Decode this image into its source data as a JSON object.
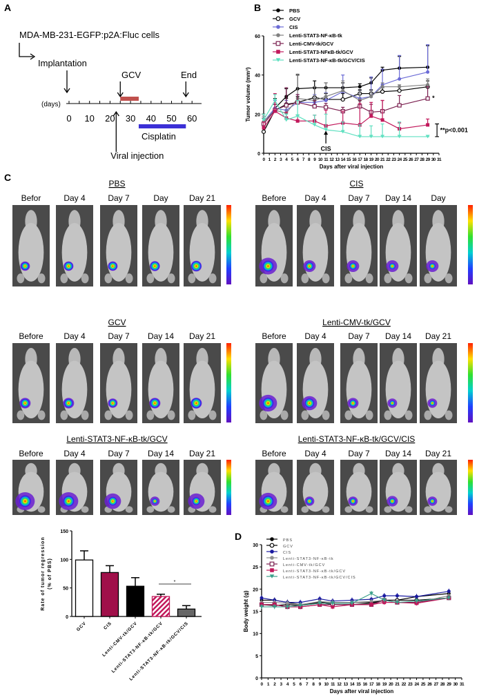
{
  "panel_labels": {
    "a": "A",
    "b": "B",
    "c": "C",
    "d": "D"
  },
  "panel_a": {
    "cells": "MDA-MB-231-EGFP:p2A:Fluc cells",
    "implantation": "Implantation",
    "gcv": "GCV",
    "end": "End",
    "days_label": "(days)",
    "ticks": [
      0,
      10,
      20,
      30,
      40,
      50,
      60
    ],
    "gcv_period_days": [
      25,
      34
    ],
    "cisplatin_period_days": [
      34,
      57
    ],
    "viral_injection_day": 23,
    "cisplatin": "Cisplatin",
    "viral_injection": "Viral injection",
    "colors": {
      "gcv_bar": "#c0504d",
      "cisplatin_bar": "#3b2fd6"
    }
  },
  "panel_c": {
    "groups": [
      {
        "title": "PBS",
        "labels": [
          "Befor",
          "Day 4",
          "Day 7",
          "Day",
          "Day 21"
        ],
        "signal": [
          0.5,
          0.6,
          0.6,
          0.7,
          0.8
        ],
        "spread": [
          0.3,
          0.3,
          0.3,
          0.3,
          0.3
        ]
      },
      {
        "title": "CIS",
        "labels": [
          "Before",
          "Day 4",
          "Day 7",
          "Day 14",
          "Day"
        ],
        "signal": [
          0.9,
          0.5,
          0.4,
          0.3,
          0.3
        ],
        "spread": [
          0.9,
          0.5,
          0.5,
          0.5,
          0.5
        ]
      },
      {
        "title": "GCV",
        "labels": [
          "Before",
          "Day 4",
          "Day 7",
          "Day 14",
          "Day 21"
        ],
        "signal": [
          0.6,
          0.6,
          0.5,
          0.7,
          0.8
        ],
        "spread": [
          0.4,
          0.4,
          0.3,
          0.4,
          0.4
        ]
      },
      {
        "title": "Lenti-CMV-tk/GCV",
        "labels": [
          "Before",
          "Day 4",
          "Day 7",
          "Day 14",
          "Day 21"
        ],
        "signal": [
          0.9,
          0.7,
          0.4,
          0.2,
          0.2
        ],
        "spread": [
          0.9,
          0.7,
          0.4,
          0.3,
          0.3
        ]
      },
      {
        "title": "Lenti-STAT3-NF-κB-tk/GCV",
        "labels": [
          "Before",
          "Day 4",
          "Day 7",
          "Day 14",
          "Day 21"
        ],
        "signal": [
          1.0,
          0.9,
          0.6,
          0.2,
          0.5
        ],
        "spread": [
          1.0,
          1.0,
          0.8,
          0.3,
          0.8
        ]
      },
      {
        "title": "Lenti-STAT3-NF-κB-tk/GCV/CIS",
        "labels": [
          "Before",
          "Day 4",
          "Day 7",
          "Day 14",
          "Day 21"
        ],
        "signal": [
          0.9,
          0.3,
          0.3,
          0.3,
          0.2
        ],
        "spread": [
          0.9,
          0.3,
          0.3,
          0.4,
          0.3
        ]
      }
    ]
  },
  "chart_data": [
    {
      "id": "B",
      "type": "line",
      "xlabel": "Days after viral injection",
      "ylabel": "Tumor volume (mm³)",
      "xlim": [
        0,
        31
      ],
      "ylim": [
        0,
        60
      ],
      "yticks": [
        0,
        20,
        40,
        60
      ],
      "legend_placement": "top-left",
      "x": [
        0,
        2,
        4,
        6,
        9,
        11,
        14,
        17,
        19,
        21,
        24,
        29
      ],
      "series": [
        {
          "name": "PBS",
          "color": "#000000",
          "marker": "filled-circle",
          "values": [
            16,
            23,
            29,
            33,
            33.5,
            33.5,
            33.5,
            34,
            36,
            42.5,
            43.5,
            44
          ],
          "err": [
            4,
            5,
            4,
            7,
            3.5,
            2.5,
            2.5,
            1.5,
            2.5,
            1.5,
            6,
            11
          ]
        },
        {
          "name": "GCV",
          "color": "#000000",
          "marker": "open-circle",
          "values": [
            11,
            22,
            25,
            26,
            28.5,
            27.5,
            27.5,
            30.5,
            30.5,
            31.5,
            32,
            34
          ],
          "err": [
            2,
            3,
            3,
            3,
            5,
            3,
            3,
            2,
            2,
            2,
            2,
            3
          ]
        },
        {
          "name": "CIS",
          "color": "#6b6bd6",
          "marker": "filled-circle",
          "values": [
            16,
            23,
            22,
            26,
            26,
            27,
            31.5,
            28,
            29,
            35,
            38,
            41.5
          ],
          "err": [
            3,
            4,
            5,
            4,
            4,
            4,
            8.5,
            4,
            10,
            8,
            12,
            14
          ]
        },
        {
          "name": "Lenti-STAT3-NF-κB-tk",
          "color": "#808080",
          "marker": "filled-circle",
          "values": [
            16,
            22,
            20.5,
            28,
            27,
            29,
            32,
            27,
            29,
            34,
            34,
            35
          ],
          "err": [
            3,
            3,
            4,
            12.5,
            7,
            7,
            5,
            5,
            3,
            2,
            1,
            3
          ]
        },
        {
          "name": "Lenti-CMV-tk/GCV",
          "color": "#7a1f4f",
          "marker": "open-square",
          "values": [
            15,
            22,
            24.5,
            26,
            24,
            23.5,
            21.5,
            24,
            21,
            21.5,
            24.5,
            28
          ],
          "err": [
            3,
            3,
            9,
            4,
            3,
            2,
            2,
            3,
            4,
            5.5,
            5,
            6
          ]
        },
        {
          "name": "Lenti-STAT3-NFκB-tk/GCV",
          "color": "#c2185b",
          "marker": "filled-square",
          "values": [
            13,
            21.5,
            18,
            16.5,
            16.5,
            14,
            15.5,
            14.5,
            19,
            17,
            12.5,
            14.5
          ],
          "err": [
            3,
            9,
            3,
            3,
            3,
            8,
            6,
            11,
            7,
            10,
            3,
            3
          ]
        },
        {
          "name": "Lenti-STAT3-NF-κB-tk/GCV/CIS",
          "color": "#5fe0c0",
          "marker": "down-triangle",
          "values": [
            17,
            27,
            17,
            19,
            14.5,
            12,
            11,
            8.5,
            8.5,
            8.5,
            8.5,
            8.5
          ],
          "err": [
            3,
            3,
            3,
            8,
            5,
            8,
            5,
            6,
            5.5,
            6.5,
            7.5,
            0
          ]
        }
      ],
      "annotations": {
        "cis_arrow": "CIS",
        "cis_day": 11,
        "significance": "**p<0.001",
        "star": "*"
      }
    },
    {
      "id": "C-bar",
      "type": "bar",
      "ylabel": "Rate of tumor regression (% of PBS)",
      "ylim": [
        0,
        150
      ],
      "yticks": [
        0,
        50,
        100,
        150
      ],
      "categories": [
        "GCV",
        "CIS",
        "Lenti-CMV-tk/GCV",
        "Lenti-STAT3-NF-κB-tk/GCV",
        "Lenti-STAT3-NF-κB-tk/GCV/CIS"
      ],
      "values": [
        99,
        77,
        53,
        35,
        13
      ],
      "err": [
        16,
        12,
        15,
        4,
        6
      ],
      "colors": [
        "#ffffff",
        "#a0104a",
        "#000000",
        "hatch-#c2185b",
        "#666666"
      ],
      "annotations": {
        "star": "*"
      }
    },
    {
      "id": "D",
      "type": "line",
      "xlabel": "Days after viral injection",
      "ylabel": "Body weight (g)",
      "xlim": [
        0,
        31
      ],
      "ylim": [
        0,
        30
      ],
      "yticks": [
        0,
        5,
        10,
        15,
        20,
        25,
        30
      ],
      "legend_placement": "top-left",
      "x": [
        0,
        2,
        4,
        6,
        9,
        11,
        14,
        17,
        19,
        21,
        24,
        29
      ],
      "series": [
        {
          "name": "PBS",
          "color": "#000000",
          "marker": "filled-circle",
          "values": [
            17.5,
            17.5,
            17,
            16.5,
            17,
            17,
            17,
            17,
            17.5,
            17.5,
            18.3,
            19
          ]
        },
        {
          "name": "GCV",
          "color": "#000000",
          "marker": "open-circle",
          "values": [
            16.5,
            16.3,
            16.5,
            16.3,
            17,
            16.5,
            16.5,
            16.8,
            17.5,
            17.5,
            17.5,
            18
          ]
        },
        {
          "name": "CIS",
          "color": "#1a1aa0",
          "marker": "filled-circle",
          "values": [
            18,
            17.5,
            17,
            17,
            17.8,
            17.3,
            17.5,
            17.7,
            18.5,
            18.5,
            18.3,
            19.5
          ]
        },
        {
          "name": "Lenti-STAT3-NF-κB-tk",
          "color": "#909090",
          "marker": "filled-circle",
          "values": [
            17,
            17,
            16.8,
            16.5,
            17.2,
            17,
            17,
            17.2,
            17.5,
            17,
            17,
            18.5
          ]
        },
        {
          "name": "Lenti-CMV-tk/GCV",
          "color": "#7a1f4f",
          "marker": "open-square",
          "values": [
            16.5,
            16.5,
            16,
            16,
            16.5,
            16.5,
            16.5,
            16.5,
            17.5,
            17,
            17,
            18
          ]
        },
        {
          "name": "Lenti-STAT3-NF-κB-tk/GCV",
          "color": "#c2185b",
          "marker": "filled-square",
          "values": [
            16.5,
            16.5,
            16,
            16,
            16.5,
            16,
            16.5,
            16.5,
            17,
            17,
            16.8,
            18
          ]
        },
        {
          "name": "Lenti-STAT3-NF-κB-tk/GCV/CIS",
          "color": "#3aa08a",
          "marker": "down-triangle",
          "values": [
            16,
            16,
            16,
            16.3,
            16.8,
            16.8,
            16.8,
            19,
            17.5,
            17,
            17.3,
            18
          ]
        }
      ]
    }
  ]
}
